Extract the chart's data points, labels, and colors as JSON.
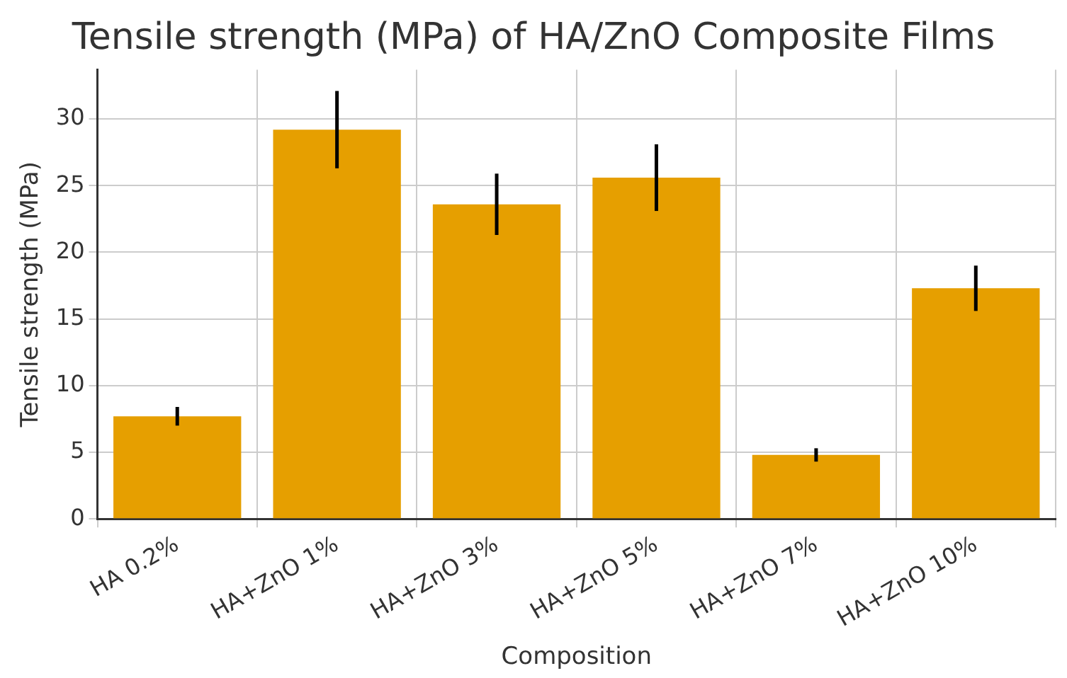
{
  "chart_data": {
    "type": "bar",
    "title": "Tensile strength (MPa) of HA/ZnO Composite Films",
    "xlabel": "Composition",
    "ylabel": "Tensile strength (MPa)",
    "categories": [
      "HA 0.2%",
      "HA+ZnO 1%",
      "HA+ZnO 3%",
      "HA+ZnO 5%",
      "HA+ZnO 7%",
      "HA+ZnO 10%"
    ],
    "values": [
      7.7,
      29.2,
      23.6,
      25.6,
      4.8,
      17.3
    ],
    "errors": [
      0.7,
      2.9,
      2.3,
      2.5,
      0.5,
      1.7
    ],
    "color": "#e69f00",
    "ylim": [
      0,
      33.7
    ],
    "yticks": [
      0,
      5,
      10,
      15,
      20,
      25,
      30
    ],
    "grid": true,
    "legend": false
  }
}
